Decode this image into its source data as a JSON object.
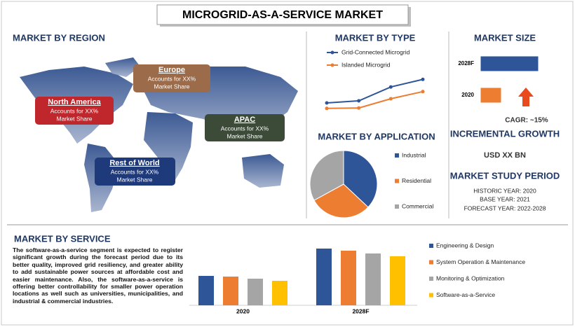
{
  "title": "MICROGRID-AS-A-SERVICE MARKET",
  "region": {
    "heading": "MARKET BY REGION",
    "regions": [
      {
        "name": "North America",
        "lines": [
          "Accounts for XX%",
          "Market Share"
        ]
      },
      {
        "name": "Europe",
        "lines": [
          "Accounts for XX%",
          "Market Share"
        ]
      },
      {
        "name": "APAC",
        "lines": [
          "Accounts for XX%",
          "Market Share"
        ]
      },
      {
        "name": "Rest of World",
        "lines": [
          "Accounts for XX%",
          "Market Share"
        ]
      }
    ]
  },
  "chart_data": [
    {
      "type": "line",
      "title": "MARKET BY TYPE",
      "categories": [
        null,
        null,
        null,
        null
      ],
      "ylim": [
        0,
        10
      ],
      "series": [
        {
          "name": "Grid-Connected Microgrid",
          "color": "#2e5597",
          "values": [
            3,
            3.5,
            6.8,
            8.6
          ]
        },
        {
          "name": "Islanded Microgrid",
          "color": "#ed7d31",
          "values": [
            1.7,
            1.8,
            4,
            5.7
          ]
        }
      ]
    },
    {
      "type": "hbar",
      "title": "MARKET SIZE",
      "categories": [
        "2028F",
        "2020"
      ],
      "values": [
        83,
        30
      ],
      "colors": [
        "#2e5597",
        "#ed7d31"
      ],
      "xlim": [
        0,
        100
      ],
      "annotation": "CAGR: ~15%"
    },
    {
      "type": "pie",
      "title": "MARKET BY APPLICATION",
      "categories": [
        "Industrial",
        "Residential",
        "Commercial"
      ],
      "values": [
        37,
        30,
        33
      ],
      "colors": [
        "#2e5597",
        "#ed7d31",
        "#a5a5a5"
      ]
    },
    {
      "type": "bar",
      "title": "MARKET BY SERVICE",
      "categories": [
        "2020",
        "2028F"
      ],
      "ylim": [
        0,
        90
      ],
      "series": [
        {
          "name": "Engineering & Design",
          "color": "#2e5597",
          "values": [
            42,
            81
          ]
        },
        {
          "name": "System Operation & Maintenance",
          "color": "#ed7d31",
          "values": [
            41,
            78
          ]
        },
        {
          "name": "Monitoring & Optimization",
          "color": "#a5a5a5",
          "values": [
            38,
            74
          ]
        },
        {
          "name": "Software-as-a-Service",
          "color": "#ffc000",
          "values": [
            35,
            70
          ]
        }
      ]
    }
  ],
  "growth": {
    "heading": "INCREMENTAL GROWTH",
    "value": "USD XX BN"
  },
  "study_period": {
    "heading": "MARKET STUDY PERIOD",
    "lines": [
      "HISTORIC YEAR: 2020",
      "BASE YEAR: 2021",
      "FORECAST YEAR: 2022-2028"
    ]
  },
  "service_text": "The software-as-a-service segment is expected to register significant growth during the forecast period due to its better quality, improved grid resiliency, and greater ability to add sustainable power sources at affordable cost and easier maintenance. Also, the software-as-a-service is offering better controllability for smaller power operation locations as well such as universities, municipalities, and industrial & commercial industries."
}
